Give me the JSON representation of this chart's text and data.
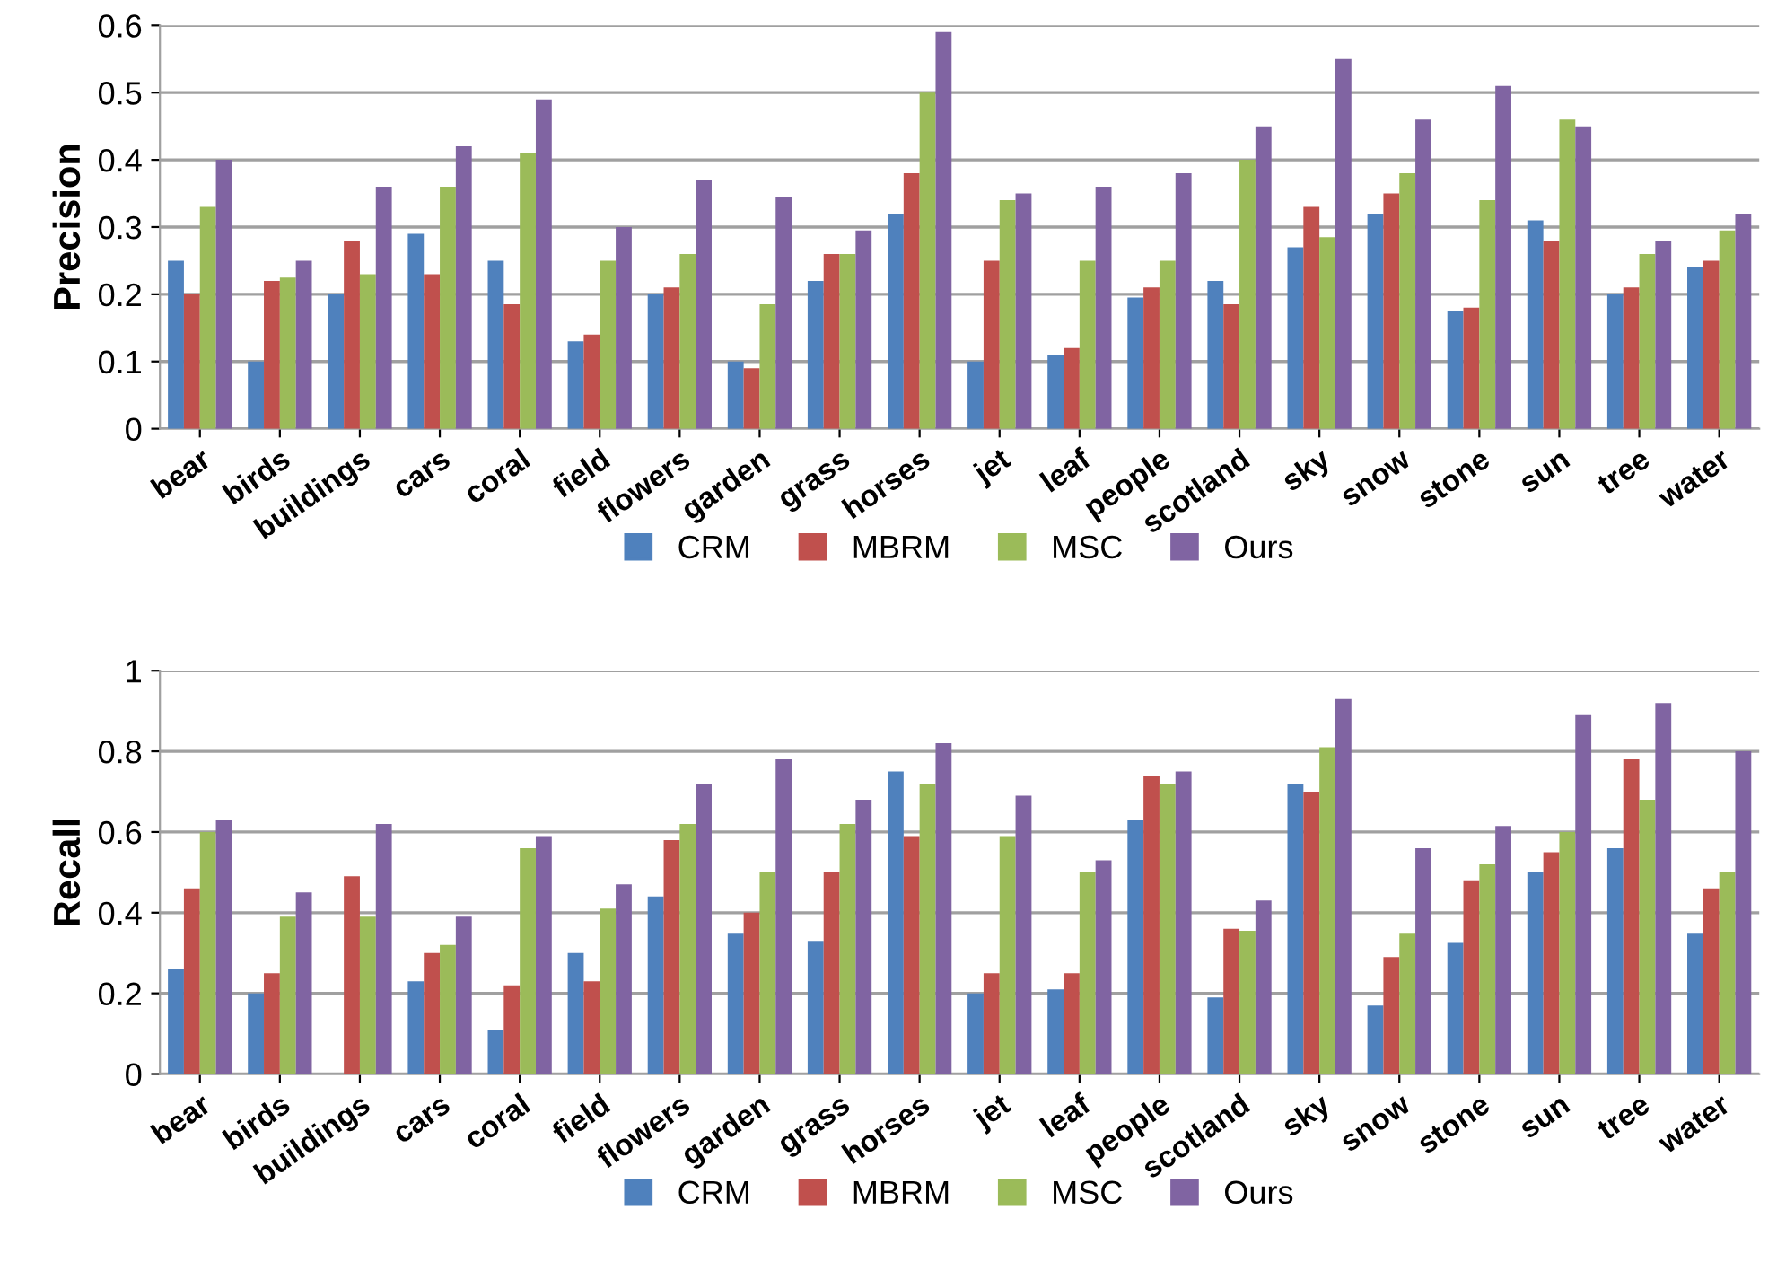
{
  "chart_data": [
    {
      "type": "bar",
      "ylabel": "Precision",
      "categories": [
        "bear",
        "birds",
        "buildings",
        "cars",
        "coral",
        "field",
        "flowers",
        "garden",
        "grass",
        "horses",
        "jet",
        "leaf",
        "people",
        "scotland",
        "sky",
        "snow",
        "stone",
        "sun",
        "tree",
        "water"
      ],
      "series": [
        {
          "name": "CRM",
          "color": "#4f81bd",
          "values": [
            0.25,
            0.1,
            0.2,
            0.29,
            0.25,
            0.13,
            0.2,
            0.1,
            0.22,
            0.32,
            0.1,
            0.11,
            0.195,
            0.22,
            0.27,
            0.32,
            0.175,
            0.31,
            0.2,
            0.24
          ]
        },
        {
          "name": "MBRM",
          "color": "#c0504d",
          "values": [
            0.2,
            0.22,
            0.28,
            0.23,
            0.185,
            0.14,
            0.21,
            0.09,
            0.26,
            0.38,
            0.25,
            0.12,
            0.21,
            0.185,
            0.33,
            0.35,
            0.18,
            0.28,
            0.21,
            0.25
          ]
        },
        {
          "name": "MSC",
          "color": "#9bbb59",
          "values": [
            0.33,
            0.225,
            0.23,
            0.36,
            0.41,
            0.25,
            0.26,
            0.185,
            0.26,
            0.5,
            0.34,
            0.25,
            0.25,
            0.4,
            0.285,
            0.38,
            0.34,
            0.46,
            0.26,
            0.295
          ]
        },
        {
          "name": "Ours",
          "color": "#8064a2",
          "values": [
            0.4,
            0.25,
            0.36,
            0.42,
            0.49,
            0.3,
            0.37,
            0.345,
            0.295,
            0.59,
            0.35,
            0.36,
            0.38,
            0.45,
            0.55,
            0.46,
            0.51,
            0.45,
            0.28,
            0.32
          ]
        }
      ],
      "ylim": [
        0,
        0.6
      ],
      "yticks": [
        0,
        0.1,
        0.2,
        0.3,
        0.4,
        0.5,
        0.6
      ],
      "grid": "y",
      "legend": "bottom"
    },
    {
      "type": "bar",
      "ylabel": "Recall",
      "categories": [
        "bear",
        "birds",
        "buildings",
        "cars",
        "coral",
        "field",
        "flowers",
        "garden",
        "grass",
        "horses",
        "jet",
        "leaf",
        "people",
        "scotland",
        "sky",
        "snow",
        "stone",
        "sun",
        "tree",
        "water"
      ],
      "series": [
        {
          "name": "CRM",
          "color": "#4f81bd",
          "values": [
            0.26,
            0.2,
            0.0,
            0.23,
            0.11,
            0.3,
            0.44,
            0.35,
            0.33,
            0.75,
            0.2,
            0.21,
            0.63,
            0.19,
            0.72,
            0.17,
            0.325,
            0.5,
            0.56,
            0.35
          ]
        },
        {
          "name": "MBRM",
          "color": "#c0504d",
          "values": [
            0.46,
            0.25,
            0.49,
            0.3,
            0.22,
            0.23,
            0.58,
            0.4,
            0.5,
            0.59,
            0.25,
            0.25,
            0.74,
            0.36,
            0.7,
            0.29,
            0.48,
            0.55,
            0.78,
            0.46
          ]
        },
        {
          "name": "MSC",
          "color": "#9bbb59",
          "values": [
            0.6,
            0.39,
            0.39,
            0.32,
            0.56,
            0.41,
            0.62,
            0.5,
            0.62,
            0.72,
            0.59,
            0.5,
            0.72,
            0.355,
            0.81,
            0.35,
            0.52,
            0.6,
            0.68,
            0.5
          ]
        },
        {
          "name": "Ours",
          "color": "#8064a2",
          "values": [
            0.63,
            0.45,
            0.62,
            0.39,
            0.59,
            0.47,
            0.72,
            0.78,
            0.68,
            0.82,
            0.69,
            0.53,
            0.75,
            0.43,
            0.93,
            0.56,
            0.615,
            0.89,
            0.92,
            0.8
          ]
        }
      ],
      "ylim": [
        0,
        1
      ],
      "yticks": [
        0,
        0.2,
        0.4,
        0.6,
        0.8,
        1
      ],
      "grid": "y",
      "legend": "bottom"
    }
  ]
}
